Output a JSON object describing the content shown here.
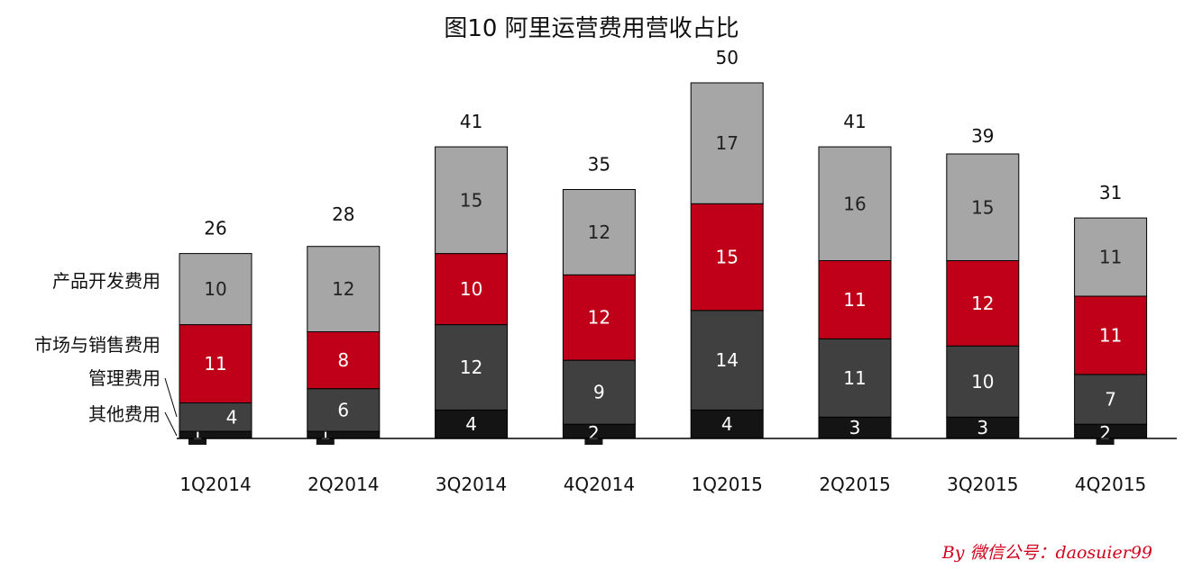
{
  "chart_data": {
    "type": "bar",
    "stacked": true,
    "title": "图10 阿里运营费用营收占比",
    "categories": [
      "1Q2014",
      "2Q2014",
      "3Q2014",
      "4Q2014",
      "1Q2015",
      "2Q2015",
      "3Q2015",
      "4Q2015"
    ],
    "totals": [
      26,
      28,
      41,
      35,
      50,
      41,
      39,
      31
    ],
    "series": [
      {
        "name": "其他费用",
        "values": [
          1,
          1,
          4,
          2,
          4,
          3,
          3,
          2
        ],
        "color": "#141414",
        "label_color": "#ffffff"
      },
      {
        "name": "管理费用",
        "values": [
          4,
          6,
          12,
          9,
          14,
          11,
          10,
          7
        ],
        "color": "#404040",
        "label_color": "#ffffff"
      },
      {
        "name": "市场与销售费用",
        "values": [
          11,
          8,
          10,
          12,
          15,
          11,
          12,
          11
        ],
        "color": "#bf0018",
        "label_color": "#ffffff"
      },
      {
        "name": "产品开发费用",
        "values": [
          10,
          12,
          15,
          12,
          17,
          16,
          15,
          11
        ],
        "color": "#a6a6a6",
        "label_color": "#222222"
      }
    ],
    "legend_placement": "left",
    "ylim": [
      0,
      52
    ],
    "grid": false
  },
  "credit": "By 微信公号：daosuier99"
}
